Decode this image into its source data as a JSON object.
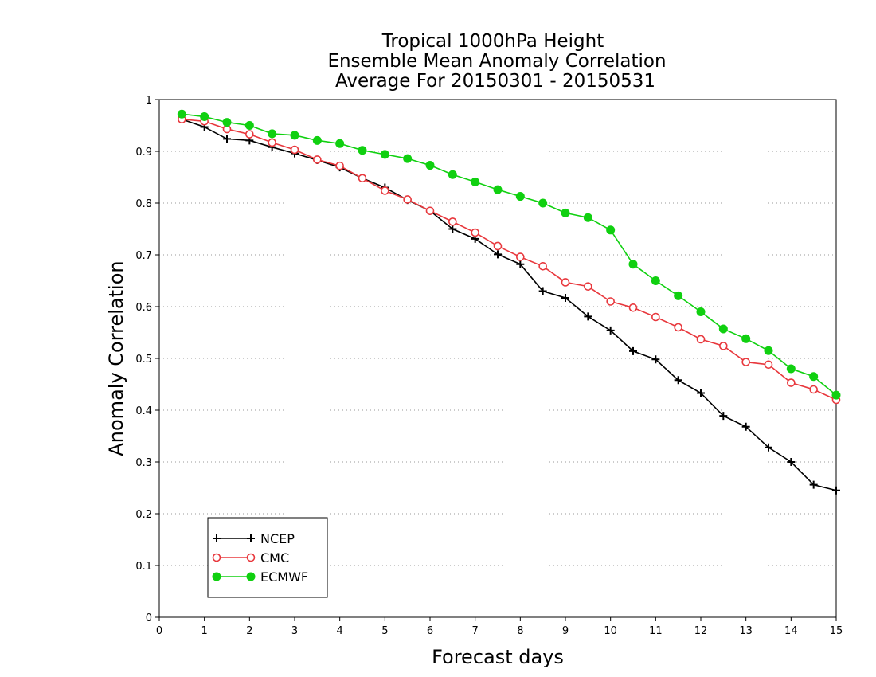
{
  "chart_data": {
    "type": "line",
    "title": [
      "Tropical 1000hPa Height",
      "Ensemble Mean Anomaly Correlation",
      "Average For 20150301 - 20150531"
    ],
    "xlabel": "Forecast days",
    "ylabel": "Anomaly Correlation",
    "xlim": [
      0,
      15
    ],
    "ylim": [
      0,
      1
    ],
    "xticks": [
      "0",
      "1",
      "2",
      "3",
      "4",
      "5",
      "6",
      "7",
      "8",
      "9",
      "10",
      "11",
      "12",
      "13",
      "14",
      "15"
    ],
    "yticks": [
      "0",
      "0.1",
      "0.2",
      "0.3",
      "0.4",
      "0.5",
      "0.6",
      "0.7",
      "0.8",
      "0.9",
      "1"
    ],
    "grid": "horizontal-dotted",
    "legend_position": "bottom-left",
    "x": [
      0.5,
      1,
      1.5,
      2,
      2.5,
      3,
      3.5,
      4,
      4.5,
      5,
      5.5,
      6,
      6.5,
      7,
      7.5,
      8,
      8.5,
      9,
      9.5,
      10,
      10.5,
      11,
      11.5,
      12,
      12.5,
      13,
      13.5,
      14,
      14.5,
      15
    ],
    "series": [
      {
        "name": "NCEP",
        "color": "#000000",
        "marker": "plus",
        "values": [
          0.962,
          0.947,
          0.924,
          0.921,
          0.908,
          0.896,
          0.883,
          0.869,
          0.848,
          0.83,
          0.806,
          0.785,
          0.75,
          0.731,
          0.701,
          0.682,
          0.63,
          0.617,
          0.581,
          0.554,
          0.514,
          0.498,
          0.458,
          0.433,
          0.389,
          0.368,
          0.328,
          0.3,
          0.256,
          0.245
        ]
      },
      {
        "name": "CMC",
        "color": "#e8383d",
        "marker": "open-circle",
        "values": [
          0.962,
          0.958,
          0.943,
          0.933,
          0.917,
          0.903,
          0.884,
          0.872,
          0.848,
          0.824,
          0.807,
          0.785,
          0.764,
          0.743,
          0.717,
          0.696,
          0.678,
          0.647,
          0.639,
          0.61,
          0.598,
          0.58,
          0.56,
          0.537,
          0.524,
          0.493,
          0.488,
          0.453,
          0.44,
          0.42
        ]
      },
      {
        "name": "ECMWF",
        "color": "#10d010",
        "marker": "filled-circle",
        "values": [
          0.972,
          0.967,
          0.956,
          0.95,
          0.934,
          0.931,
          0.921,
          0.915,
          0.902,
          0.894,
          0.886,
          0.873,
          0.855,
          0.841,
          0.826,
          0.813,
          0.8,
          0.781,
          0.772,
          0.748,
          0.682,
          0.65,
          0.621,
          0.59,
          0.557,
          0.538,
          0.515,
          0.48,
          0.465,
          0.429
        ]
      }
    ]
  }
}
